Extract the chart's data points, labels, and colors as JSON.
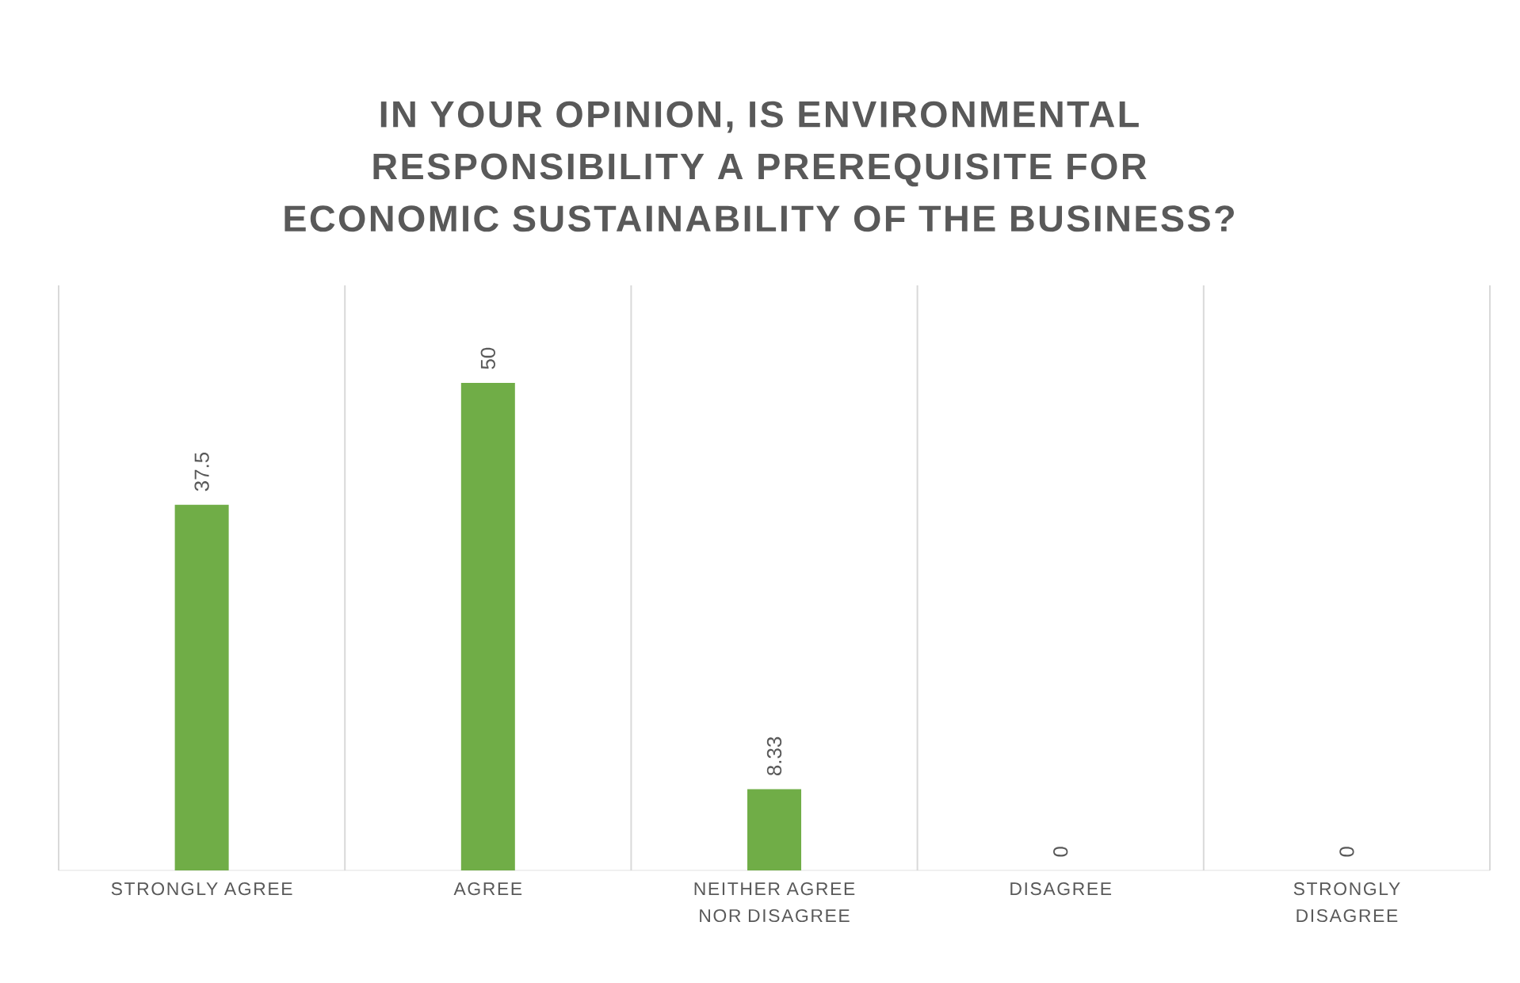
{
  "chart_data": {
    "type": "bar",
    "title": "IN YOUR OPINION, IS ENVIRONMENTAL RESPONSIBILITY A PREREQUISITE FOR ECONOMIC SUSTAINABILITY OF THE BUSINESS?",
    "categories": [
      "STRONGLY AGREE",
      "AGREE",
      "NEITHER AGREE NOR DISAGREE",
      "DISAGREE",
      "STRONGLY DISAGREE"
    ],
    "values": [
      37.5,
      50,
      8.33,
      0,
      0
    ],
    "color": "#70ad47",
    "data_labels": true,
    "grid": "x"
  }
}
